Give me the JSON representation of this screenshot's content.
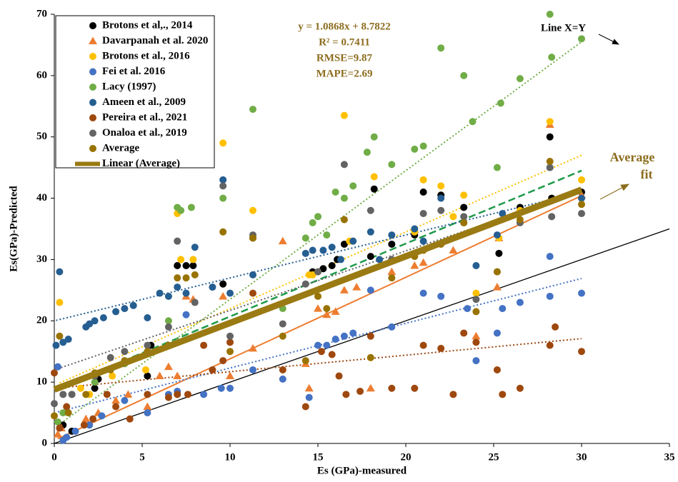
{
  "chart_data": {
    "type": "scatter",
    "xlabel": "Es (GPa)-measured",
    "ylabel": "Es(GPa)-Predicted",
    "xlim": [
      0,
      35
    ],
    "xticks": [
      0,
      5,
      10,
      15,
      20,
      25,
      30,
      35
    ],
    "ylim": [
      0,
      70
    ],
    "yticks": [
      0,
      10,
      20,
      30,
      40,
      50,
      60,
      70
    ],
    "legend": "upper left",
    "annotations": [
      "y = 1.0868x + 8.7822",
      "R² = 0.7411",
      "RMSE=9.87",
      "MAPE=2.69"
    ],
    "reference_line": {
      "label": "Line X=Y",
      "color": "#000000"
    },
    "fit_label": [
      "Average",
      "fit"
    ],
    "average_fit": {
      "name": "Linear (Average)",
      "color": "#9a7a12",
      "slope": 1.0868,
      "intercept": 8.7822
    },
    "series": [
      {
        "name": "Brotons et al,., 2014",
        "color": "#000000",
        "marker": "circle",
        "trendline": {
          "color": "#1e9a4a",
          "dash": "dashed",
          "slope": 1.19,
          "intercept": 8.8
        },
        "x": [
          0.5,
          1,
          2.3,
          2.5,
          5.3,
          5.5,
          7.0,
          7.5,
          7.9,
          9.6,
          11.3,
          14.7,
          15.0,
          15.3,
          15.8,
          16.1,
          16.5,
          18,
          18.2,
          19.2,
          20.5,
          21,
          22,
          23.3,
          25.3,
          26.5,
          28.2,
          28.3,
          30
        ],
        "values": [
          3,
          2,
          9,
          10.5,
          11,
          16,
          29,
          29,
          29,
          26,
          33.5,
          28,
          28,
          28.5,
          29,
          30,
          32.5,
          30.5,
          41.5,
          32.5,
          34,
          41,
          40.5,
          38.5,
          31,
          38.5,
          50,
          40,
          41
        ]
      },
      {
        "name": "Davarpanah  et al. 2020",
        "color": "#ed7d31",
        "marker": "triangle",
        "trendline": {
          "color": "#ed7d31",
          "dash": "solid",
          "slope": 1.33,
          "intercept": 0.5
        },
        "x": [
          0.2,
          0.4,
          1.8,
          2.5,
          3.5,
          4.2,
          5.3,
          6.0,
          6.5,
          7.0,
          7.5,
          7.9,
          9.6,
          10.0,
          11.3,
          13.0,
          14.3,
          14.5,
          15.0,
          15.5,
          16.0,
          16.5,
          17.2,
          18,
          19.2,
          20.5,
          21,
          22.7,
          24,
          25.2,
          25.3,
          28.2,
          30
        ],
        "values": [
          1.5,
          2.5,
          4,
          5,
          7,
          8,
          6,
          11,
          12.5,
          11,
          24,
          23.5,
          24,
          11,
          15.5,
          33,
          13,
          9,
          22,
          21,
          21.5,
          25,
          25.5,
          9,
          28,
          29,
          29.5,
          31.5,
          17.5,
          25.5,
          33.5,
          52,
          40.5
        ]
      },
      {
        "name": "Brotons et al., 2016",
        "color": "#ffc000",
        "marker": "circle",
        "trendline": {
          "color": "#ffc000",
          "dash": "dotted",
          "slope": 1.25,
          "intercept": 9.5
        },
        "x": [
          0.3,
          1.5,
          2.0,
          3.3,
          5.2,
          7.0,
          7.2,
          7.9,
          9.6,
          11.3,
          14.5,
          14.7,
          15.0,
          16.5,
          16.8,
          18.2,
          20.5,
          21,
          22,
          22.7,
          23.3,
          24,
          25.3,
          26.5,
          28.2,
          30
        ],
        "values": [
          23,
          9,
          8,
          11,
          12,
          37.5,
          30,
          30,
          49,
          38,
          27.5,
          27.5,
          28,
          53.5,
          33,
          43.5,
          34.5,
          43,
          42,
          37,
          40.5,
          24.5,
          33.5,
          38,
          52.5,
          43
        ]
      },
      {
        "name": "Fei et al. 2016",
        "color": "#4472c4",
        "marker": "circle",
        "trendline": {
          "color": "#4472c4",
          "dash": "dotted",
          "slope": 0.73,
          "intercept": 5
        },
        "x": [
          0.2,
          0.5,
          0.7,
          1.2,
          2.0,
          2.7,
          4.0,
          5.3,
          6.5,
          7.0,
          7.5,
          8.5,
          9.5,
          10.0,
          11.3,
          13.0,
          14.5,
          15.0,
          15.5,
          16.0,
          16.5,
          17.0,
          18.0,
          19.2,
          21.0,
          22.0,
          23.5,
          24.0,
          25.2,
          25.5,
          26.5,
          28.2,
          28.2,
          30
        ],
        "values": [
          12.5,
          0.5,
          1,
          2,
          3,
          4.5,
          7,
          5,
          8,
          8.5,
          21,
          8,
          9,
          9,
          12,
          10.5,
          7.5,
          16,
          16,
          17,
          17.5,
          18,
          25,
          19,
          24.5,
          24,
          22,
          13.5,
          18,
          22,
          23,
          24,
          30.5,
          24.5
        ]
      },
      {
        "name": "Lacy (1997)",
        "color": "#70ad47",
        "marker": "circle",
        "trendline": {
          "color": "#70ad47",
          "dash": "dotted",
          "slope": 2.1,
          "intercept": 2.5
        },
        "x": [
          0.2,
          0.5,
          1.0,
          2.3,
          4,
          6.5,
          7.0,
          7.2,
          7.8,
          9.6,
          11.3,
          13.0,
          14.3,
          14.7,
          15.0,
          15.5,
          16.0,
          16.5,
          17.0,
          17.8,
          18.2,
          19.2,
          20.5,
          21.0,
          22.0,
          23.3,
          23.8,
          25.2,
          25.4,
          26.5,
          28.2,
          28.3,
          30
        ],
        "values": [
          3.5,
          5,
          8,
          10,
          13,
          20,
          38.5,
          38,
          38.5,
          40,
          54.5,
          22,
          33.5,
          36,
          37,
          34,
          41,
          40,
          42,
          47.5,
          50,
          45.5,
          48,
          48.5,
          64.5,
          60,
          52.5,
          45,
          55.5,
          59.5,
          70,
          63,
          66
        ]
      },
      {
        "name": "Ameen et al., 2009",
        "color": "#255e91",
        "marker": "circle",
        "trendline": {
          "color": "#255e91",
          "dash": "dotted",
          "slope": 0.7,
          "intercept": 20
        },
        "x": [
          0.1,
          0.3,
          0.5,
          0.8,
          1.8,
          2.0,
          2.3,
          2.8,
          3.5,
          4.0,
          4.5,
          5.3,
          6.0,
          6.5,
          7.0,
          7.5,
          8.0,
          9.0,
          9.6,
          10.0,
          11.3,
          14.3,
          14.7,
          15.3,
          15.8,
          16.3,
          17.0,
          18.0,
          18.5,
          19.2,
          20.5,
          21.0,
          22.0,
          23.3,
          24.0,
          25.2,
          25.5,
          28.2,
          30
        ],
        "values": [
          16,
          28,
          16.5,
          17,
          19,
          19.5,
          20,
          20.5,
          21.5,
          22,
          22.5,
          20.5,
          24.5,
          24,
          25.5,
          24.5,
          32,
          25.5,
          43,
          24.5,
          27.5,
          31,
          31.5,
          31.5,
          32,
          30,
          33,
          34.5,
          30,
          34,
          35,
          33,
          40,
          36,
          29,
          34,
          37.5,
          45,
          40
        ]
      },
      {
        "name": "Pereira  et al., 2021",
        "color": "#9e480e",
        "marker": "circle",
        "trendline": {
          "color": "#9e480e",
          "dash": "dotted",
          "slope": 0.27,
          "intercept": 9
        },
        "x": [
          0,
          0.3,
          0.7,
          1.7,
          2.2,
          3.0,
          3.5,
          4.3,
          5.3,
          6.5,
          7.0,
          7.6,
          8.5,
          9.0,
          9.6,
          10.0,
          11.3,
          13.0,
          14.3,
          15.2,
          15.8,
          16.2,
          16.6,
          17.4,
          18,
          19.2,
          20.5,
          21.0,
          22.0,
          22.7,
          23.3,
          24.0,
          25.2,
          25.5,
          26.5,
          28.2,
          28.5,
          30
        ],
        "values": [
          11.5,
          2.5,
          6,
          3,
          4,
          8,
          6,
          4,
          8,
          7.5,
          8,
          8,
          16,
          12,
          13.5,
          16.5,
          24.5,
          12,
          6,
          15,
          14.5,
          11,
          8,
          8.5,
          17.5,
          9,
          9,
          16,
          15.5,
          8,
          18,
          16.5,
          12,
          8,
          9,
          16,
          19,
          15
        ]
      },
      {
        "name": "Onaloa et al., 2019",
        "color": "#636363",
        "marker": "circle",
        "trendline": {
          "color": "#636363",
          "dash": "dotted",
          "slope": 0.97,
          "intercept": 12
        },
        "x": [
          0,
          0.5,
          1.0,
          2.3,
          3.2,
          4.0,
          5.3,
          6.5,
          7.0,
          8.0,
          9.6,
          10.0,
          11.3,
          13.0,
          14.3,
          15.0,
          16.5,
          18.0,
          19.2,
          20.5,
          21.0,
          22.0,
          23.3,
          24.0,
          25.2,
          26.5,
          28.2,
          28.3,
          30
        ],
        "values": [
          6.5,
          8,
          8,
          11,
          14,
          15,
          16,
          19,
          33,
          23,
          42,
          17.5,
          34,
          19.5,
          26,
          28,
          45.5,
          38,
          30,
          31,
          37.5,
          38,
          37,
          23.5,
          28,
          36,
          45,
          37,
          37.5
        ]
      },
      {
        "name": "Average",
        "color": "#997300",
        "marker": "circle",
        "x": [
          0,
          0.3,
          0.8,
          1.8,
          2.3,
          3.2,
          4.0,
          5.3,
          6.5,
          7.0,
          7.5,
          8.0,
          9.6,
          10.0,
          11.3,
          13.0,
          14.3,
          15.0,
          15.5,
          16.5,
          18.0,
          19.2,
          20.5,
          21.0,
          22.0,
          23.3,
          24.0,
          25.2,
          26.5,
          28.2,
          30
        ],
        "values": [
          4.5,
          17.5,
          5,
          8,
          11.5,
          12,
          13.5,
          15,
          16,
          27,
          27,
          27.5,
          34.5,
          15,
          33.5,
          17.5,
          13.5,
          24,
          22,
          36.5,
          14,
          27,
          30.5,
          31.5,
          32.5,
          36,
          21.5,
          28,
          36.5,
          46,
          39
        ]
      }
    ]
  }
}
